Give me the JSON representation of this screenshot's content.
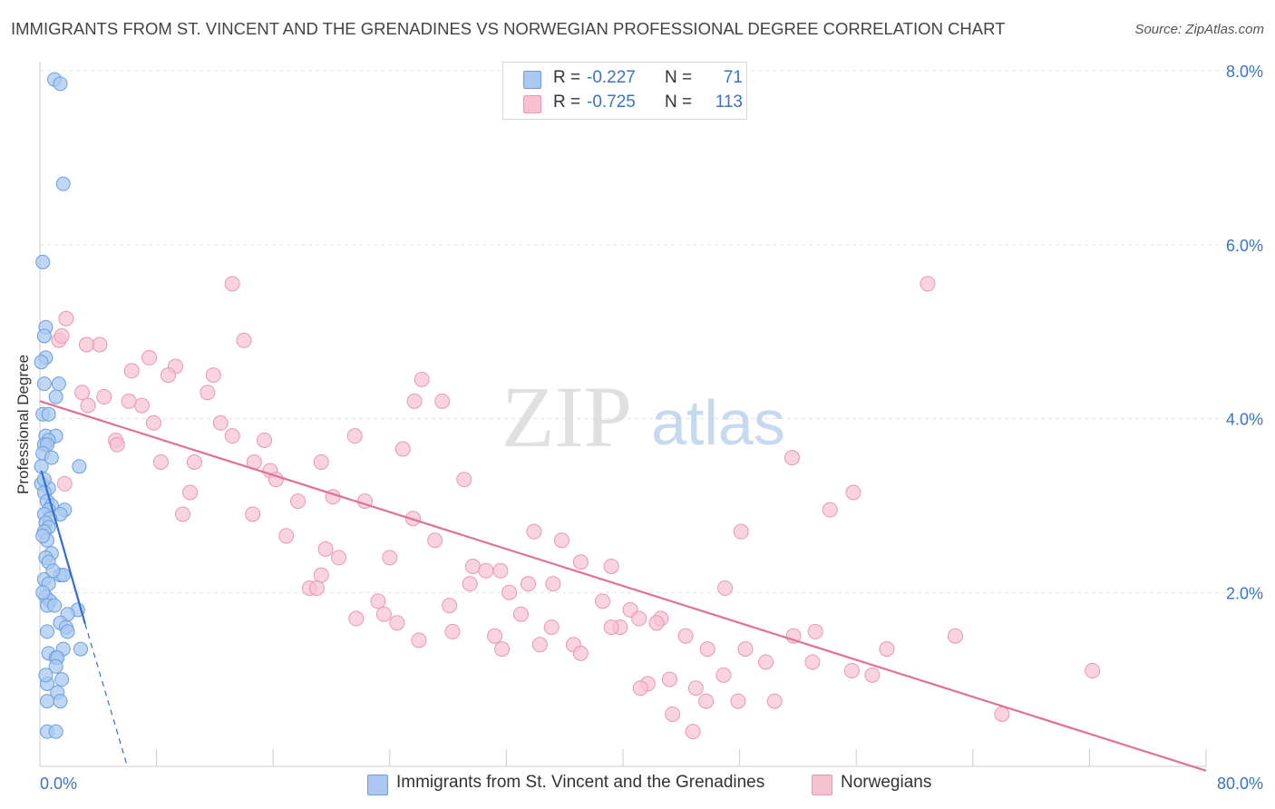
{
  "header": {
    "title": "IMMIGRANTS FROM ST. VINCENT AND THE GRENADINES VS NORWEGIAN PROFESSIONAL DEGREE CORRELATION CHART",
    "source": "Source: ZipAtlas.com"
  },
  "legend": {
    "rows": [
      {
        "r_label": "R =",
        "r_value": "-0.227",
        "n_label": "N =",
        "n_value": "71"
      },
      {
        "r_label": "R =",
        "r_value": "-0.725",
        "n_label": "N =",
        "n_value": "113"
      }
    ]
  },
  "bottom_legend": {
    "series1": "Immigrants from St. Vincent and the Grenadines",
    "series2": "Norwegians"
  },
  "watermark": {
    "zip": "ZIP",
    "atlas": "atlas"
  },
  "colors": {
    "blue_fill": "#aac8f0",
    "blue_stroke": "#6a9ee0",
    "blue_line": "#2f6fd0",
    "pink_fill": "#f6c2d2",
    "pink_stroke": "#e898b4",
    "pink_line": "#e0709a",
    "tick_label": "#3a74c8",
    "grid": "#e4e4e4"
  },
  "chart_data": {
    "type": "scatter",
    "title": "IMMIGRANTS FROM ST. VINCENT AND THE GRENADINES VS NORWEGIAN PROFESSIONAL DEGREE CORRELATION CHART",
    "xlabel": "",
    "ylabel": "Professional Degree",
    "xlim": [
      0,
      80
    ],
    "ylim": [
      0,
      8.0
    ],
    "x_tick_labels": [
      "0.0%",
      "80.0%"
    ],
    "y_ticks": [
      2,
      4,
      6,
      8
    ],
    "y_tick_labels": [
      "2.0%",
      "4.0%",
      "6.0%",
      "8.0%"
    ],
    "grid": true,
    "legend_position": "top-center",
    "series": [
      {
        "name": "Immigrants from St. Vincent and the Grenadines",
        "color": "#aac8f0",
        "R": -0.227,
        "N": 71,
        "trend": {
          "x0": 0.1,
          "y0": 3.4,
          "x1": 3.1,
          "y1": 1.64,
          "dashed_to_x": 6.0,
          "dashed_to_y": 0.0
        },
        "points": [
          [
            1.0,
            7.9
          ],
          [
            1.4,
            7.85
          ],
          [
            1.6,
            6.7
          ],
          [
            0.2,
            5.8
          ],
          [
            0.4,
            5.05
          ],
          [
            0.3,
            4.95
          ],
          [
            0.4,
            4.7
          ],
          [
            0.1,
            4.65
          ],
          [
            0.3,
            4.4
          ],
          [
            1.3,
            4.4
          ],
          [
            1.1,
            4.25
          ],
          [
            0.2,
            4.05
          ],
          [
            0.6,
            4.05
          ],
          [
            0.4,
            3.8
          ],
          [
            1.1,
            3.8
          ],
          [
            0.6,
            3.75
          ],
          [
            0.3,
            3.7
          ],
          [
            0.5,
            3.7
          ],
          [
            0.2,
            3.6
          ],
          [
            2.7,
            3.45
          ],
          [
            0.1,
            3.45
          ],
          [
            0.1,
            3.25
          ],
          [
            0.6,
            3.2
          ],
          [
            0.3,
            3.15
          ],
          [
            0.5,
            3.05
          ],
          [
            0.8,
            3.0
          ],
          [
            0.6,
            2.95
          ],
          [
            1.7,
            2.95
          ],
          [
            0.3,
            2.9
          ],
          [
            1.4,
            2.9
          ],
          [
            0.7,
            2.85
          ],
          [
            0.4,
            2.8
          ],
          [
            0.6,
            2.75
          ],
          [
            0.3,
            2.7
          ],
          [
            0.5,
            2.6
          ],
          [
            0.8,
            2.45
          ],
          [
            0.4,
            2.4
          ],
          [
            0.6,
            2.35
          ],
          [
            1.4,
            2.2
          ],
          [
            1.6,
            2.2
          ],
          [
            0.3,
            2.15
          ],
          [
            0.6,
            2.1
          ],
          [
            0.4,
            1.95
          ],
          [
            0.7,
            1.9
          ],
          [
            0.5,
            1.85
          ],
          [
            1.0,
            1.85
          ],
          [
            2.6,
            1.8
          ],
          [
            1.9,
            1.75
          ],
          [
            1.4,
            1.65
          ],
          [
            1.8,
            1.6
          ],
          [
            0.5,
            1.55
          ],
          [
            1.9,
            1.55
          ],
          [
            2.8,
            1.35
          ],
          [
            1.6,
            1.35
          ],
          [
            0.6,
            1.3
          ],
          [
            1.1,
            1.25
          ],
          [
            1.2,
            1.25
          ],
          [
            1.1,
            1.15
          ],
          [
            1.5,
            1.0
          ],
          [
            0.5,
            0.95
          ],
          [
            1.2,
            0.85
          ],
          [
            0.5,
            0.75
          ],
          [
            1.4,
            0.75
          ],
          [
            0.5,
            0.4
          ],
          [
            1.1,
            0.4
          ],
          [
            0.2,
            2.0
          ],
          [
            0.3,
            3.3
          ],
          [
            0.8,
            3.55
          ],
          [
            0.9,
            2.25
          ],
          [
            0.4,
            1.05
          ],
          [
            0.2,
            2.65
          ]
        ]
      },
      {
        "name": "Norwegians",
        "color": "#f6c2d2",
        "R": -0.725,
        "N": 113,
        "trend": {
          "x0": 0.0,
          "y0": 4.2,
          "x1": 80.0,
          "y1": -0.05
        },
        "points": [
          [
            13.2,
            5.55
          ],
          [
            60.9,
            5.55
          ],
          [
            1.8,
            5.15
          ],
          [
            14.0,
            4.9
          ],
          [
            1.3,
            4.9
          ],
          [
            1.5,
            4.95
          ],
          [
            4.1,
            4.85
          ],
          [
            3.2,
            4.85
          ],
          [
            7.5,
            4.7
          ],
          [
            9.3,
            4.6
          ],
          [
            6.3,
            4.55
          ],
          [
            8.8,
            4.5
          ],
          [
            11.9,
            4.5
          ],
          [
            26.2,
            4.45
          ],
          [
            11.5,
            4.3
          ],
          [
            2.9,
            4.3
          ],
          [
            25.7,
            4.2
          ],
          [
            27.6,
            4.2
          ],
          [
            4.4,
            4.25
          ],
          [
            3.3,
            4.15
          ],
          [
            7.0,
            4.15
          ],
          [
            6.1,
            4.2
          ],
          [
            12.4,
            3.95
          ],
          [
            7.8,
            3.95
          ],
          [
            13.2,
            3.8
          ],
          [
            21.6,
            3.8
          ],
          [
            5.2,
            3.75
          ],
          [
            15.4,
            3.75
          ],
          [
            5.3,
            3.7
          ],
          [
            24.9,
            3.65
          ],
          [
            51.6,
            3.55
          ],
          [
            8.3,
            3.5
          ],
          [
            10.6,
            3.5
          ],
          [
            14.7,
            3.5
          ],
          [
            19.3,
            3.5
          ],
          [
            15.8,
            3.4
          ],
          [
            16.2,
            3.3
          ],
          [
            29.1,
            3.3
          ],
          [
            1.7,
            3.25
          ],
          [
            10.3,
            3.15
          ],
          [
            20.1,
            3.1
          ],
          [
            22.3,
            3.05
          ],
          [
            17.7,
            3.05
          ],
          [
            55.8,
            3.15
          ],
          [
            54.2,
            2.95
          ],
          [
            9.8,
            2.9
          ],
          [
            14.6,
            2.9
          ],
          [
            25.6,
            2.85
          ],
          [
            33.9,
            2.7
          ],
          [
            48.1,
            2.7
          ],
          [
            16.9,
            2.65
          ],
          [
            27.1,
            2.6
          ],
          [
            35.8,
            2.6
          ],
          [
            19.6,
            2.5
          ],
          [
            20.5,
            2.4
          ],
          [
            24.0,
            2.4
          ],
          [
            37.1,
            2.35
          ],
          [
            29.7,
            2.3
          ],
          [
            30.6,
            2.25
          ],
          [
            39.2,
            2.3
          ],
          [
            31.6,
            2.25
          ],
          [
            19.3,
            2.2
          ],
          [
            18.5,
            2.05
          ],
          [
            19.0,
            2.05
          ],
          [
            29.5,
            2.1
          ],
          [
            33.5,
            2.1
          ],
          [
            35.2,
            2.1
          ],
          [
            47.0,
            2.05
          ],
          [
            32.2,
            2.0
          ],
          [
            23.2,
            1.9
          ],
          [
            38.6,
            1.9
          ],
          [
            28.1,
            1.85
          ],
          [
            40.5,
            1.8
          ],
          [
            23.6,
            1.75
          ],
          [
            33.0,
            1.75
          ],
          [
            21.7,
            1.7
          ],
          [
            24.5,
            1.65
          ],
          [
            41.1,
            1.7
          ],
          [
            42.6,
            1.7
          ],
          [
            42.3,
            1.65
          ],
          [
            39.8,
            1.6
          ],
          [
            35.1,
            1.6
          ],
          [
            39.2,
            1.6
          ],
          [
            28.3,
            1.55
          ],
          [
            53.2,
            1.55
          ],
          [
            51.7,
            1.5
          ],
          [
            31.2,
            1.5
          ],
          [
            44.3,
            1.5
          ],
          [
            62.8,
            1.5
          ],
          [
            26.0,
            1.45
          ],
          [
            34.3,
            1.4
          ],
          [
            36.6,
            1.4
          ],
          [
            45.8,
            1.35
          ],
          [
            48.4,
            1.35
          ],
          [
            31.7,
            1.35
          ],
          [
            37.1,
            1.3
          ],
          [
            58.1,
            1.35
          ],
          [
            49.8,
            1.2
          ],
          [
            53.0,
            1.2
          ],
          [
            55.7,
            1.1
          ],
          [
            57.1,
            1.05
          ],
          [
            72.2,
            1.1
          ],
          [
            46.9,
            1.05
          ],
          [
            43.2,
            1.0
          ],
          [
            41.7,
            0.95
          ],
          [
            41.2,
            0.9
          ],
          [
            45.0,
            0.9
          ],
          [
            45.7,
            0.75
          ],
          [
            47.9,
            0.75
          ],
          [
            50.4,
            0.75
          ],
          [
            66.0,
            0.6
          ],
          [
            43.4,
            0.6
          ],
          [
            44.8,
            0.4
          ]
        ]
      }
    ]
  }
}
